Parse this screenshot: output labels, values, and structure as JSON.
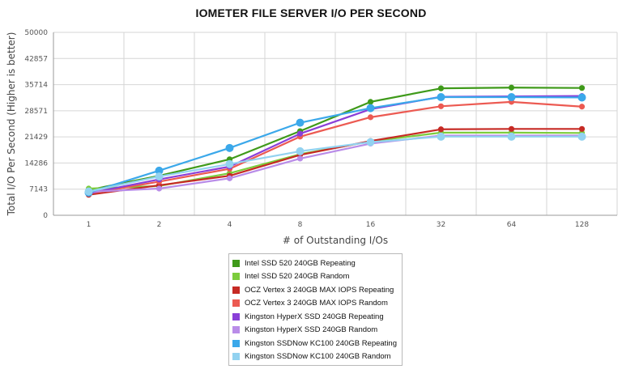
{
  "chart_data": {
    "type": "line",
    "title": "IOMETER FILE SERVER I/O PER SECOND",
    "xlabel": "# of Outstanding I/Os",
    "ylabel": "Total I/O Per Second (Higher is better)",
    "categories": [
      "1",
      "2",
      "4",
      "8",
      "16",
      "32",
      "64",
      "128"
    ],
    "yticks": [
      0,
      7143,
      14286,
      21429,
      28571,
      35714,
      42857,
      50000
    ],
    "ylim": [
      0,
      50000
    ],
    "grid": true,
    "legend_position": "bottom",
    "series": [
      {
        "name": "Intel SSD 520 240GB Repeating",
        "color": "#3f9a1a",
        "values": [
          6900,
          10800,
          15300,
          23000,
          31000,
          34700,
          34900,
          34800
        ]
      },
      {
        "name": "Intel SSD 520 240GB Random",
        "color": "#7ccc3c",
        "values": [
          7300,
          8000,
          11500,
          16700,
          20200,
          22600,
          22600,
          22500
        ]
      },
      {
        "name": "OCZ Vertex 3 240GB MAX IOPS Repeating",
        "color": "#c62a24",
        "values": [
          5600,
          8200,
          10800,
          16500,
          20300,
          23500,
          23600,
          23600
        ]
      },
      {
        "name": "OCZ Vertex 3 240GB MAX IOPS Random",
        "color": "#ec5a52",
        "values": [
          5900,
          9200,
          12700,
          21500,
          26800,
          29800,
          31000,
          29700
        ]
      },
      {
        "name": "Kingston HyperX SSD 240GB Repeating",
        "color": "#8a3fd8",
        "values": [
          6000,
          9800,
          13300,
          22300,
          29000,
          32400,
          32500,
          32600
        ]
      },
      {
        "name": "Kingston HyperX SSD 240GB Random",
        "color": "#b98ce8",
        "values": [
          6400,
          7300,
          10100,
          15500,
          19600,
          21800,
          21800,
          21800
        ]
      },
      {
        "name": "Kingston SSDNow KC100 240GB Repeating",
        "color": "#3ba8ea",
        "values": [
          6200,
          12200,
          18400,
          25300,
          29300,
          32300,
          32300,
          32200
        ]
      },
      {
        "name": "Kingston SSDNow KC100 240GB Random",
        "color": "#92d2f0",
        "values": [
          6500,
          10600,
          14000,
          17500,
          20000,
          21500,
          21500,
          21500
        ]
      }
    ]
  }
}
